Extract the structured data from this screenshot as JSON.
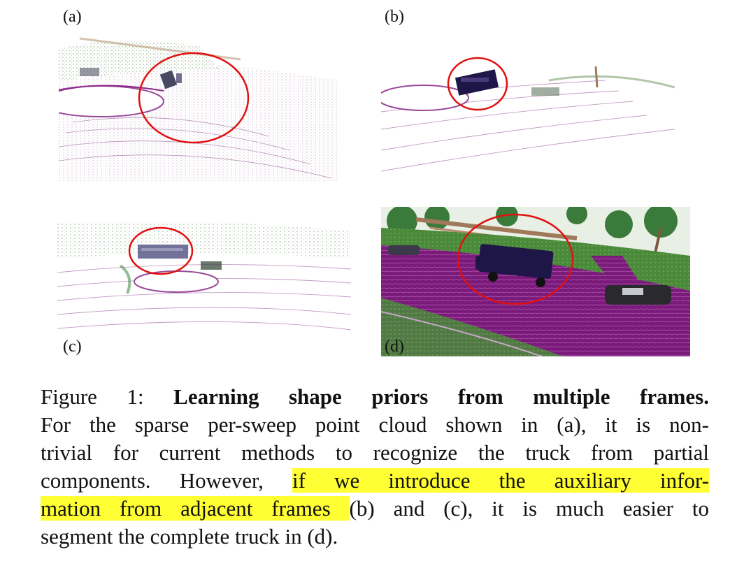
{
  "figure": {
    "panels": [
      {
        "label": "(a)"
      },
      {
        "label": "(b)"
      },
      {
        "label": "(c)"
      },
      {
        "label": "(d)"
      }
    ],
    "caption": {
      "prefix": "Figure 1: ",
      "bold_title": "Learning shape priors from multiple frames.",
      "line2": "For the sparse per-sweep point cloud shown in (a), it is non-",
      "line3": "trivial for current methods to recognize the truck from partial",
      "line4_a": "components. However, ",
      "line4_hl": "if we introduce the auxiliary infor-",
      "line5_hl": "mation from adjacent frames ",
      "line5_b": "(b) and (c), it is much easier to",
      "line6": "segment the complete truck in (d)."
    },
    "colors": {
      "highlight": "#ffff33",
      "circle": "#e01010",
      "road": "#8a1a8a",
      "vegetation": "#3a8a2a",
      "truck": "#1e1646"
    }
  }
}
